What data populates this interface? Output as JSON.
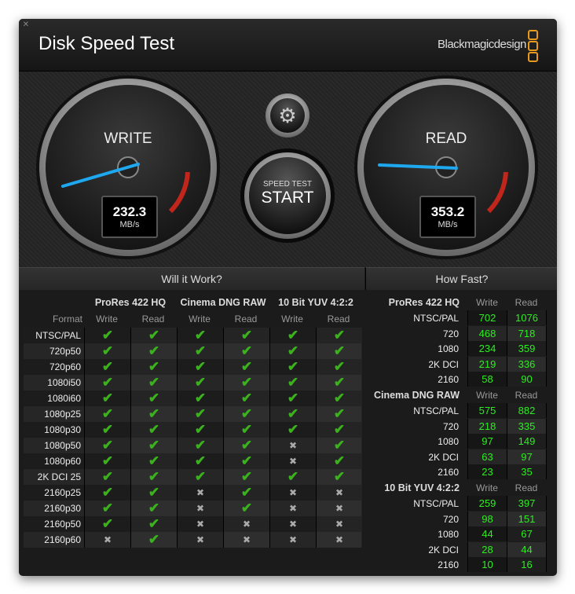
{
  "window": {
    "title": "Disk Speed Test",
    "brand": "Blackmagicdesign",
    "close_icon": "close-icon"
  },
  "gauges": {
    "write": {
      "label": "WRITE",
      "value": "232.3",
      "unit": "MB/s"
    },
    "read": {
      "label": "READ",
      "value": "353.2",
      "unit": "MB/s"
    },
    "settings_icon": "gear-icon",
    "start": {
      "caption": "SPEED TEST",
      "label": "START"
    }
  },
  "will_it_work": {
    "title": "Will it Work?",
    "format_label": "Format",
    "codecs": [
      "ProRes 422 HQ",
      "Cinema DNG RAW",
      "10 Bit YUV 4:2:2"
    ],
    "subcols": [
      "Write",
      "Read",
      "Write",
      "Read",
      "Write",
      "Read"
    ],
    "rows": [
      {
        "format": "NTSC/PAL",
        "ok": [
          1,
          1,
          1,
          1,
          1,
          1
        ]
      },
      {
        "format": "720p50",
        "ok": [
          1,
          1,
          1,
          1,
          1,
          1
        ]
      },
      {
        "format": "720p60",
        "ok": [
          1,
          1,
          1,
          1,
          1,
          1
        ]
      },
      {
        "format": "1080i50",
        "ok": [
          1,
          1,
          1,
          1,
          1,
          1
        ]
      },
      {
        "format": "1080i60",
        "ok": [
          1,
          1,
          1,
          1,
          1,
          1
        ]
      },
      {
        "format": "1080p25",
        "ok": [
          1,
          1,
          1,
          1,
          1,
          1
        ]
      },
      {
        "format": "1080p30",
        "ok": [
          1,
          1,
          1,
          1,
          1,
          1
        ]
      },
      {
        "format": "1080p50",
        "ok": [
          1,
          1,
          1,
          1,
          0,
          1
        ]
      },
      {
        "format": "1080p60",
        "ok": [
          1,
          1,
          1,
          1,
          0,
          1
        ]
      },
      {
        "format": "2K DCI 25",
        "ok": [
          1,
          1,
          1,
          1,
          1,
          1
        ]
      },
      {
        "format": "2160p25",
        "ok": [
          1,
          1,
          0,
          1,
          0,
          0
        ]
      },
      {
        "format": "2160p30",
        "ok": [
          1,
          1,
          0,
          1,
          0,
          0
        ]
      },
      {
        "format": "2160p50",
        "ok": [
          1,
          1,
          0,
          0,
          0,
          0
        ]
      },
      {
        "format": "2160p60",
        "ok": [
          0,
          1,
          0,
          0,
          0,
          0
        ]
      }
    ]
  },
  "how_fast": {
    "title": "How Fast?",
    "groups": [
      {
        "codec": "ProRes 422 HQ",
        "write_label": "Write",
        "read_label": "Read",
        "rows": [
          {
            "format": "NTSC/PAL",
            "write": "702",
            "read": "1076"
          },
          {
            "format": "720",
            "write": "468",
            "read": "718"
          },
          {
            "format": "1080",
            "write": "234",
            "read": "359"
          },
          {
            "format": "2K DCI",
            "write": "219",
            "read": "336"
          },
          {
            "format": "2160",
            "write": "58",
            "read": "90"
          }
        ]
      },
      {
        "codec": "Cinema DNG RAW",
        "write_label": "Write",
        "read_label": "Read",
        "rows": [
          {
            "format": "NTSC/PAL",
            "write": "575",
            "read": "882"
          },
          {
            "format": "720",
            "write": "218",
            "read": "335"
          },
          {
            "format": "1080",
            "write": "97",
            "read": "149"
          },
          {
            "format": "2K DCI",
            "write": "63",
            "read": "97"
          },
          {
            "format": "2160",
            "write": "23",
            "read": "35"
          }
        ]
      },
      {
        "codec": "10 Bit YUV 4:2:2",
        "write_label": "Write",
        "read_label": "Read",
        "rows": [
          {
            "format": "NTSC/PAL",
            "write": "259",
            "read": "397"
          },
          {
            "format": "720",
            "write": "98",
            "read": "151"
          },
          {
            "format": "1080",
            "write": "44",
            "read": "67"
          },
          {
            "format": "2K DCI",
            "write": "28",
            "read": "44"
          },
          {
            "format": "2160",
            "write": "10",
            "read": "16"
          }
        ]
      }
    ]
  },
  "colors": {
    "accent_needle": "#1ea8f0",
    "ok": "#3cb11e",
    "number": "#2bf01e",
    "logo": "#e89a1e"
  }
}
